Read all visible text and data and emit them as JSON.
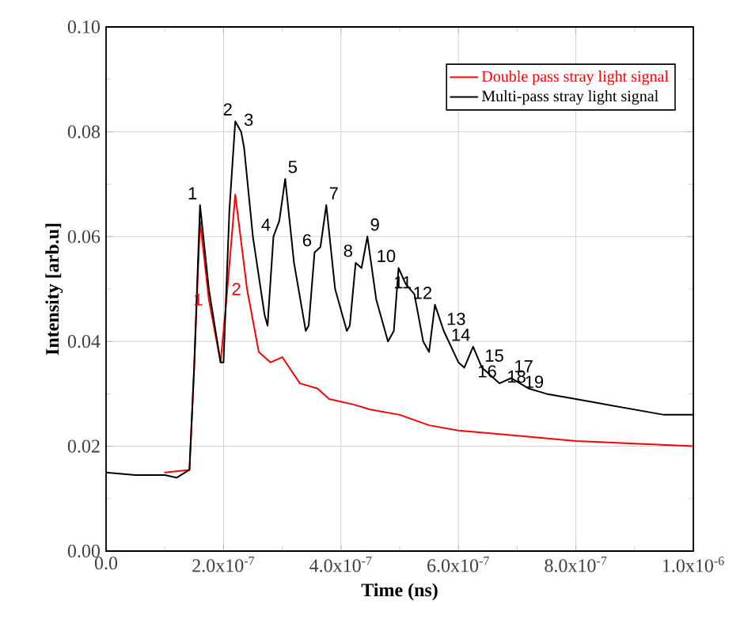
{
  "chart_data": {
    "type": "line",
    "xlabel": "Time (ns)",
    "ylabel": "Intensity [arb.u]",
    "xlim": [
      0,
      1e-06
    ],
    "ylim": [
      0,
      0.1
    ],
    "xticks": [
      {
        "value": 0,
        "label": "0.0"
      },
      {
        "value": 2e-07,
        "label": "2.0x10$^{-7}$"
      },
      {
        "value": 4e-07,
        "label": "4.0x10$^{-7}$"
      },
      {
        "value": 6e-07,
        "label": "6.0x10$^{-7}$"
      },
      {
        "value": 8e-07,
        "label": "8.0x10$^{-7}$"
      },
      {
        "value": 1e-06,
        "label": "1.0x10$^{-6}$"
      }
    ],
    "yticks": [
      {
        "value": 0,
        "label": "0.00"
      },
      {
        "value": 0.02,
        "label": "0.02"
      },
      {
        "value": 0.04,
        "label": "0.04"
      },
      {
        "value": 0.06,
        "label": "0.06"
      },
      {
        "value": 0.08,
        "label": "0.08"
      },
      {
        "value": 0.1,
        "label": "0.10"
      }
    ],
    "grid": true,
    "legend": "top right",
    "series": [
      {
        "name": "Double pass stray light signal",
        "color": "#ff0000",
        "x": [
          1e-07,
          1.42e-07,
          1.5e-07,
          1.6e-07,
          1.75e-07,
          1.95e-07,
          2.05e-07,
          2.2e-07,
          2.4e-07,
          2.6e-07,
          2.8e-07,
          3e-07,
          3.3e-07,
          3.6e-07,
          3.8e-07,
          4.2e-07,
          4.5e-07,
          5e-07,
          5.5e-07,
          6e-07,
          7e-07,
          8e-07,
          9e-07,
          1e-06
        ],
        "values": [
          0.015,
          0.0155,
          0.035,
          0.063,
          0.048,
          0.036,
          0.048,
          0.068,
          0.05,
          0.038,
          0.036,
          0.037,
          0.032,
          0.031,
          0.029,
          0.028,
          0.027,
          0.026,
          0.024,
          0.023,
          0.022,
          0.021,
          0.0205,
          0.02
        ]
      },
      {
        "name": "Multi-pass stray light signal",
        "color": "#000000",
        "x": [
          0,
          5e-08,
          1e-07,
          1.2e-07,
          1.42e-07,
          1.5e-07,
          1.6e-07,
          1.75e-07,
          1.95e-07,
          2e-07,
          2.1e-07,
          2.2e-07,
          2.3e-07,
          2.35e-07,
          2.5e-07,
          2.7e-07,
          2.75e-07,
          2.85e-07,
          2.95e-07,
          3.05e-07,
          3.2e-07,
          3.4e-07,
          3.45e-07,
          3.55e-07,
          3.65e-07,
          3.75e-07,
          3.9e-07,
          4.1e-07,
          4.15e-07,
          4.25e-07,
          4.35e-07,
          4.45e-07,
          4.6e-07,
          4.8e-07,
          4.9e-07,
          4.98e-07,
          5.1e-07,
          5.25e-07,
          5.4e-07,
          5.5e-07,
          5.6e-07,
          5.75e-07,
          6e-07,
          6.1e-07,
          6.25e-07,
          6.4e-07,
          6.7e-07,
          6.9e-07,
          7.2e-07,
          7.5e-07,
          8e-07,
          8.5e-07,
          9e-07,
          9.5e-07,
          1e-06
        ],
        "values": [
          0.015,
          0.0145,
          0.0145,
          0.014,
          0.0155,
          0.035,
          0.066,
          0.05,
          0.036,
          0.036,
          0.065,
          0.082,
          0.08,
          0.077,
          0.06,
          0.045,
          0.043,
          0.06,
          0.063,
          0.071,
          0.055,
          0.042,
          0.043,
          0.057,
          0.058,
          0.066,
          0.05,
          0.042,
          0.043,
          0.055,
          0.054,
          0.06,
          0.048,
          0.04,
          0.042,
          0.054,
          0.051,
          0.049,
          0.04,
          0.038,
          0.047,
          0.042,
          0.036,
          0.035,
          0.039,
          0.035,
          0.032,
          0.033,
          0.031,
          0.03,
          0.029,
          0.028,
          0.027,
          0.026,
          0.026
        ]
      }
    ],
    "annotations": [
      {
        "text": "1",
        "x": 1.6e-07,
        "y": 0.066
      },
      {
        "text": "2",
        "x": 2.2e-07,
        "y": 0.082
      },
      {
        "text": "3",
        "x": 2.3e-07,
        "y": 0.08
      },
      {
        "text": "4",
        "x": 2.85e-07,
        "y": 0.06
      },
      {
        "text": "5",
        "x": 3.05e-07,
        "y": 0.071
      },
      {
        "text": "6",
        "x": 3.55e-07,
        "y": 0.057
      },
      {
        "text": "7",
        "x": 3.75e-07,
        "y": 0.066
      },
      {
        "text": "8",
        "x": 4.25e-07,
        "y": 0.055
      },
      {
        "text": "9",
        "x": 4.45e-07,
        "y": 0.06
      },
      {
        "text": "10",
        "x": 4.98e-07,
        "y": 0.054
      },
      {
        "text": "11",
        "x": 5.25e-07,
        "y": 0.049
      },
      {
        "text": "12",
        "x": 5.6e-07,
        "y": 0.047
      },
      {
        "text": "13",
        "x": 5.75e-07,
        "y": 0.042
      },
      {
        "text": "14",
        "x": 6.25e-07,
        "y": 0.039
      },
      {
        "text": "15",
        "x": 6.4e-07,
        "y": 0.035
      },
      {
        "text": "16",
        "x": 6.7e-07,
        "y": 0.032
      },
      {
        "text": "17",
        "x": 6.9e-07,
        "y": 0.033
      },
      {
        "text": "18",
        "x": 7.2e-07,
        "y": 0.031
      },
      {
        "text": "19",
        "x": 7.5e-07,
        "y": 0.03
      },
      {
        "text": "1",
        "x": 1.75e-07,
        "y": 0.048
      },
      {
        "text": "2",
        "x": 2.4e-07,
        "y": 0.05
      }
    ]
  }
}
